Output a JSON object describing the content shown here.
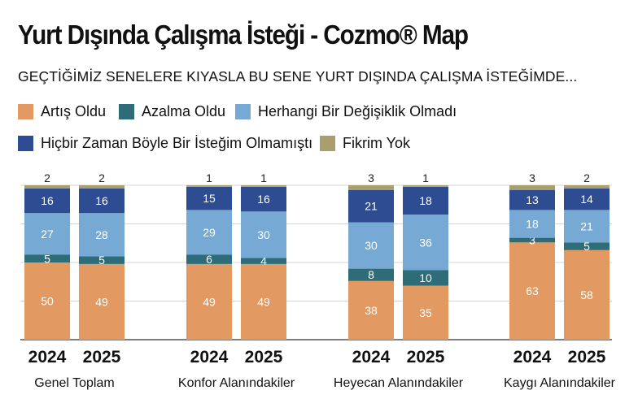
{
  "header": {
    "title": "Yurt Dışında Çalışma İsteği - Cozmo® Map",
    "subtitle": "GEÇTİĞİMİZ SENELERE KIYASLA BU SENE YURT DIŞINDA ÇALIŞMA İSTEĞİMDE..."
  },
  "colors": {
    "artis": "#E29A62",
    "azalma": "#2E6C78",
    "degisiklik": "#77A9D5",
    "hicbir": "#2D4C91",
    "fikrim": "#A99F6E",
    "grid": "#d4d4d4",
    "axis": "#333333"
  },
  "legend": [
    {
      "key": "artis",
      "label": "Artış Oldu",
      "icon": "orange-square"
    },
    {
      "key": "azalma",
      "label": "Azalma Oldu",
      "icon": "teal-square"
    },
    {
      "key": "degisiklik",
      "label": "Herhangi Bir Değişiklik Olmadı",
      "icon": "light-blue-square"
    },
    {
      "key": "hicbir",
      "label": "Hiçbir Zaman Böyle Bir İsteğim Olmamıştı",
      "icon": "navy-square"
    },
    {
      "key": "fikrim",
      "label": "Fikrim Yok",
      "icon": "olive-square"
    }
  ],
  "chart_data": {
    "type": "bar",
    "stacked": true,
    "title": "Yurt Dışında Çalışma İsteği - Cozmo® Map",
    "subtitle": "GEÇTİĞİMİZ SENELERE KIYASLA BU SENE YURT DIŞINDA ÇALIŞMA İSTEĞİMDE...",
    "ylim": [
      0,
      100
    ],
    "grid": true,
    "legend_position": "top",
    "groups": [
      {
        "label": "Genel Toplam",
        "bars": [
          {
            "year": "2024",
            "values": [
              50,
              5,
              27,
              16,
              2
            ]
          },
          {
            "year": "2025",
            "values": [
              49,
              5,
              28,
              16,
              2
            ]
          }
        ]
      },
      {
        "label": "Konfor Alanındakiler",
        "bars": [
          {
            "year": "2024",
            "values": [
              49,
              6,
              29,
              15,
              1
            ]
          },
          {
            "year": "2025",
            "values": [
              49,
              4,
              30,
              16,
              1
            ]
          }
        ]
      },
      {
        "label": "Heyecan Alanındakiler",
        "bars": [
          {
            "year": "2024",
            "values": [
              38,
              8,
              30,
              21,
              3
            ]
          },
          {
            "year": "2025",
            "values": [
              35,
              10,
              36,
              18,
              1
            ]
          }
        ]
      },
      {
        "label": "Kaygı Alanındakiler",
        "bars": [
          {
            "year": "2024",
            "values": [
              63,
              3,
              18,
              13,
              3
            ]
          },
          {
            "year": "2025",
            "values": [
              58,
              5,
              21,
              14,
              2
            ]
          }
        ]
      }
    ],
    "series": [
      {
        "name": "Artış Oldu",
        "key": "artis"
      },
      {
        "name": "Azalma Oldu",
        "key": "azalma"
      },
      {
        "name": "Herhangi Bir Değişiklik Olmadı",
        "key": "degisiklik"
      },
      {
        "name": "Hiçbir Zaman Böyle Bir İsteğim Olmamıştı",
        "key": "hicbir"
      },
      {
        "name": "Fikrim Yok",
        "key": "fikrim"
      }
    ]
  }
}
